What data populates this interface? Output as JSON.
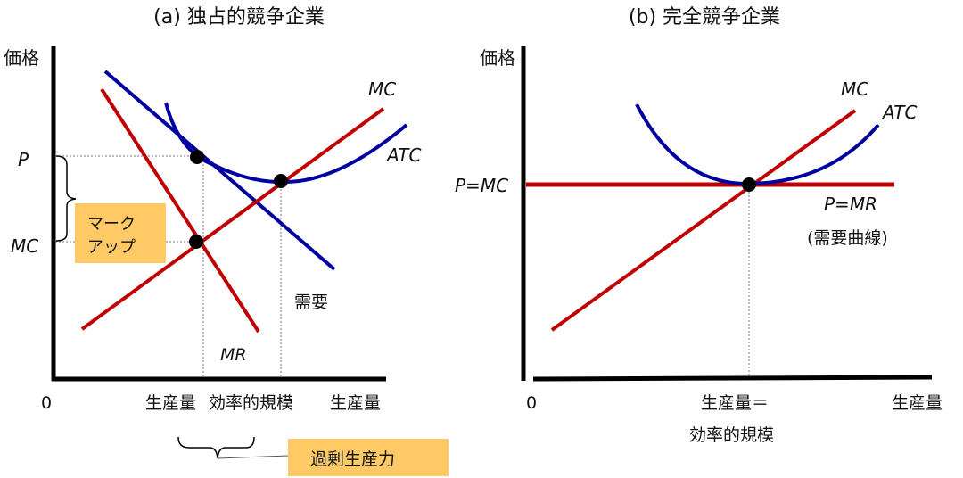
{
  "panel_a": {
    "title": "(a) 独占的競争企業",
    "y_axis_label": "価格",
    "origin": "0",
    "p_label": "P",
    "mc_tick_label": "MC",
    "markup_label_line1": "マーク",
    "markup_label_line2": "アップ",
    "mc_curve_label": "MC",
    "atc_curve_label": "ATC",
    "demand_label": "需要",
    "mr_label": "MR",
    "x_tick_output": "生産量",
    "x_tick_efficient_scale": "効率的規模",
    "x_axis_label": "生産量",
    "excess_capacity_label": "過剰生産力"
  },
  "panel_b": {
    "title": "(b) 完全競争企業",
    "y_axis_label": "価格",
    "origin": "0",
    "p_mc_label": "P=MC",
    "mc_curve_label": "MC",
    "atc_curve_label": "ATC",
    "p_mr_label": "P=MR",
    "demand_curve_label": "(需要曲線)",
    "x_tick_line1": "生産量＝",
    "x_tick_line2": "効率的規模",
    "x_axis_label": "生産量"
  },
  "colors": {
    "red_curves": "#c00000",
    "blue_curves": "#0000a0",
    "highlight_box": "#ffc966"
  }
}
